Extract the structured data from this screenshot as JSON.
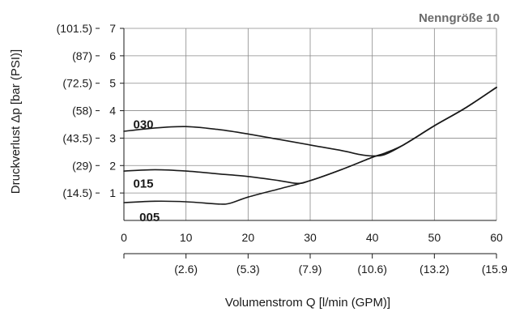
{
  "chart_data": {
    "type": "line",
    "title": "Nenngröße 10",
    "xlabel": "Volumenstrom Q [l/min (GPM)]",
    "ylabel": "Druckverlust Δp [bar (PSI)]",
    "xlim": [
      0,
      60
    ],
    "ylim": [
      0,
      7
    ],
    "grid": true,
    "x_ticks": [
      "0",
      "10",
      "20",
      "30",
      "40",
      "50",
      "60"
    ],
    "x_ticks_secondary": [
      "(2.6)",
      "(5.3)",
      "(7.9)",
      "(10.6)",
      "(13.2)",
      "(15.9)"
    ],
    "y_ticks": [
      "1",
      "2",
      "3",
      "4",
      "5",
      "6",
      "7"
    ],
    "y_ticks_secondary": [
      "(14.5)",
      "(29)",
      "(43.5)",
      "(58)",
      "(72.5)",
      "(87)",
      "(101.5)"
    ],
    "series": [
      {
        "name": "030",
        "x": [
          0,
          5,
          10,
          15,
          20,
          25,
          30,
          35,
          38,
          40,
          42,
          45,
          50,
          55,
          60
        ],
        "y": [
          3.25,
          3.37,
          3.42,
          3.32,
          3.15,
          2.95,
          2.75,
          2.55,
          2.4,
          2.35,
          2.4,
          2.75,
          3.45,
          4.1,
          4.85
        ]
      },
      {
        "name": "015",
        "x": [
          0,
          5,
          10,
          15,
          20,
          25,
          28,
          30,
          35,
          40,
          42,
          45,
          50,
          55,
          60
        ],
        "y": [
          1.8,
          1.85,
          1.8,
          1.7,
          1.6,
          1.45,
          1.35,
          1.45,
          1.85,
          2.3,
          2.45,
          2.75,
          3.45,
          4.1,
          4.85
        ]
      },
      {
        "name": "005",
        "x": [
          0,
          5,
          10,
          15,
          17,
          20,
          25,
          30,
          35,
          40,
          42,
          45,
          50,
          55,
          60
        ],
        "y": [
          0.65,
          0.7,
          0.68,
          0.6,
          0.62,
          0.85,
          1.15,
          1.45,
          1.85,
          2.3,
          2.45,
          2.75,
          3.45,
          4.1,
          4.85
        ]
      }
    ]
  }
}
